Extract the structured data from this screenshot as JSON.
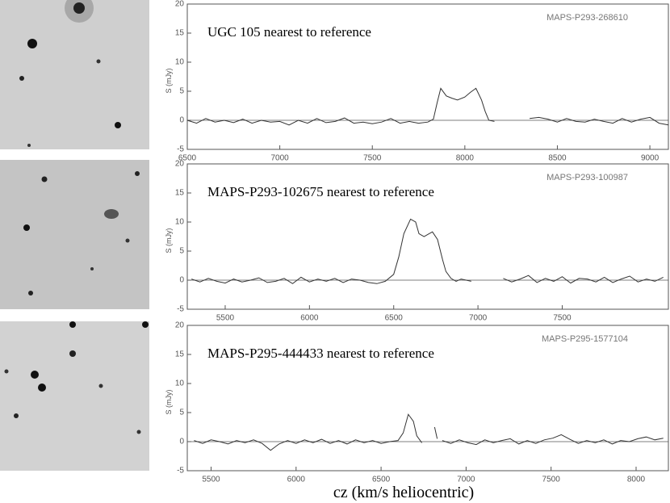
{
  "chart_data": [
    {
      "type": "line",
      "title": "UGC 105 nearest to reference",
      "annotation": "MAPS-P293-268610",
      "ylabel": "S (mJy)",
      "color": "#333333",
      "xlim": [
        6500,
        9100
      ],
      "xticks": [
        6500,
        7000,
        7500,
        8000,
        8500,
        9000
      ],
      "ylim": [
        -5,
        20
      ],
      "yticks": [
        -5,
        0,
        5,
        10,
        15,
        20
      ],
      "x": [
        6500,
        6550,
        6600,
        6650,
        6700,
        6750,
        6800,
        6850,
        6900,
        6950,
        7000,
        7050,
        7100,
        7150,
        7200,
        7250,
        7300,
        7350,
        7400,
        7450,
        7500,
        7550,
        7600,
        7650,
        7700,
        7750,
        7800,
        7830,
        7850,
        7870,
        7900,
        7930,
        7960,
        8000,
        8030,
        8060,
        8090,
        8110,
        8130,
        8160,
        8250,
        8350,
        8400,
        8450,
        8500,
        8550,
        8600,
        8650,
        8700,
        8750,
        8800,
        8850,
        8900,
        8950,
        9000,
        9050,
        9100
      ],
      "values": [
        0,
        -0.5,
        0.3,
        -0.3,
        0,
        -0.4,
        0.2,
        -0.5,
        0,
        -0.3,
        -0.2,
        -0.8,
        0,
        -0.5,
        0.3,
        -0.4,
        -0.2,
        0.4,
        -0.5,
        -0.3,
        -0.6,
        -0.3,
        0.3,
        -0.5,
        -0.2,
        -0.5,
        -0.3,
        0.2,
        3,
        5.5,
        4.2,
        3.8,
        3.5,
        4,
        4.8,
        5.5,
        3.5,
        1.5,
        0,
        -0.2,
        null,
        0.3,
        0.5,
        0.2,
        -0.3,
        0.3,
        -0.2,
        -0.3,
        0.2,
        -0.2,
        -0.5,
        0.3,
        -0.3,
        0.2,
        0.5,
        -0.5,
        -0.8
      ]
    },
    {
      "type": "line",
      "title": "MAPS-P293-102675 nearest to reference",
      "annotation": "MAPS-P293-100987",
      "ylabel": "S (mJy)",
      "color": "#333333",
      "xlim": [
        5275,
        8130
      ],
      "xticks": [
        5500,
        6000,
        6500,
        7000,
        7500
      ],
      "ylim": [
        -5,
        20
      ],
      "yticks": [
        -5,
        0,
        5,
        10,
        15,
        20
      ],
      "x": [
        5300,
        5350,
        5400,
        5450,
        5500,
        5550,
        5600,
        5650,
        5700,
        5750,
        5800,
        5850,
        5900,
        5950,
        6000,
        6050,
        6100,
        6150,
        6200,
        6250,
        6300,
        6350,
        6400,
        6450,
        6500,
        6530,
        6560,
        6600,
        6630,
        6650,
        6680,
        6710,
        6730,
        6760,
        6790,
        6810,
        6840,
        6870,
        6900,
        6930,
        6960,
        7050,
        7150,
        7200,
        7250,
        7300,
        7350,
        7400,
        7450,
        7500,
        7550,
        7600,
        7650,
        7700,
        7750,
        7800,
        7850,
        7900,
        7950,
        8000,
        8050,
        8100
      ],
      "values": [
        0.2,
        -0.3,
        0.3,
        -0.2,
        -0.5,
        0.2,
        -0.3,
        0,
        0.4,
        -0.4,
        -0.2,
        0.3,
        -0.6,
        0.5,
        -0.3,
        0.2,
        -0.2,
        0.3,
        -0.4,
        0.2,
        0,
        -0.4,
        -0.6,
        -0.2,
        1,
        4,
        8,
        10.5,
        10,
        8,
        7.5,
        8,
        8.3,
        7,
        3.5,
        1.5,
        0.3,
        -0.2,
        0.2,
        0,
        -0.2,
        null,
        0.3,
        -0.3,
        0.2,
        0.8,
        -0.4,
        0.3,
        -0.2,
        0.6,
        -0.5,
        0.3,
        0.2,
        -0.3,
        0.5,
        -0.4,
        0.2,
        0.7,
        -0.3,
        0.2,
        -0.2,
        0.5
      ]
    },
    {
      "type": "line",
      "title": "MAPS-P295-444433 nearest to reference",
      "annotation": "MAPS-P295-1577104",
      "ylabel": "S (mJy)",
      "xlabel": "cz (km/s heliocentric)",
      "color": "#333333",
      "xlim": [
        5360,
        8190
      ],
      "xticks": [
        5500,
        6000,
        6500,
        7000,
        7500,
        8000
      ],
      "ylim": [
        -5,
        20
      ],
      "yticks": [
        -5,
        0,
        5,
        10,
        15,
        20
      ],
      "x": [
        5400,
        5450,
        5500,
        5550,
        5600,
        5650,
        5700,
        5750,
        5800,
        5850,
        5900,
        5950,
        6000,
        6050,
        6100,
        6150,
        6200,
        6250,
        6300,
        6350,
        6400,
        6450,
        6500,
        6550,
        6600,
        6630,
        6660,
        6690,
        6710,
        6740,
        6780,
        6815,
        6830,
        6845,
        6860,
        6910,
        6960,
        7010,
        7060,
        7110,
        7160,
        7210,
        7260,
        7310,
        7360,
        7410,
        7460,
        7510,
        7560,
        7610,
        7660,
        7710,
        7760,
        7810,
        7860,
        7910,
        7960,
        8010,
        8060,
        8110,
        8160
      ],
      "values": [
        0.2,
        -0.3,
        0.3,
        0,
        -0.4,
        0.2,
        -0.2,
        0.3,
        -0.3,
        -1.5,
        -0.4,
        0.2,
        -0.3,
        0.3,
        -0.2,
        0.4,
        -0.3,
        0.2,
        -0.4,
        0.3,
        -0.2,
        0.2,
        -0.3,
        0,
        0.2,
        1.5,
        4.7,
        3.5,
        1,
        -0.2,
        null,
        2.5,
        0.5,
        null,
        0.2,
        -0.3,
        0.3,
        -0.2,
        -0.5,
        0.3,
        -0.2,
        0.2,
        0.5,
        -0.4,
        0.2,
        -0.3,
        0.3,
        0.6,
        1.2,
        0.4,
        -0.3,
        0.2,
        -0.2,
        0.3,
        -0.4,
        0.2,
        0,
        0.5,
        0.8,
        0.3,
        0.6
      ]
    }
  ]
}
